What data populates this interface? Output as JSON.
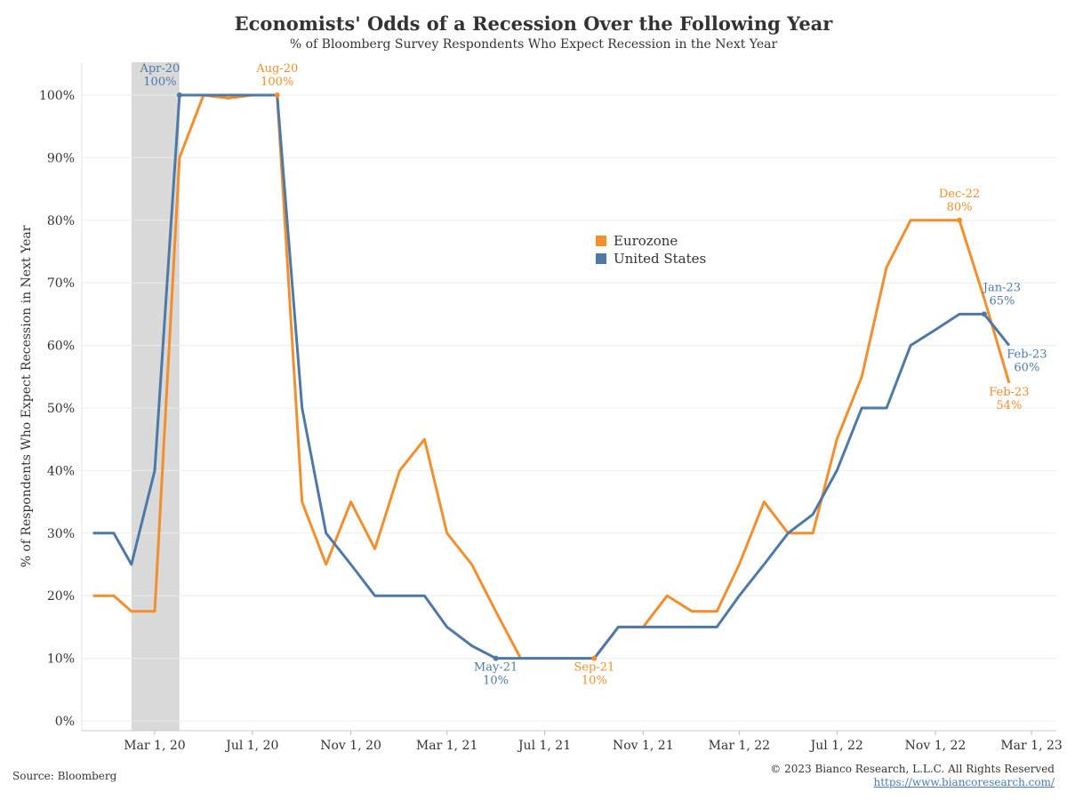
{
  "title": "Economists' Odds of a Recession Over the Following Year",
  "subtitle": "% of Bloomberg Survey Respondents Who Expect Recession in the Next Year",
  "source": "Source: Bloomberg",
  "copyright": "© 2023 Bianco Research, L.L.C. All Rights Reserved",
  "url": "https://www.biancoresearch.com/",
  "colors": {
    "eurozone": "#f28e2b",
    "us": "#4e79a7",
    "recession_shade": "#d9d9d9",
    "grid": "#ececec"
  },
  "chart_data": {
    "type": "line",
    "title": "Economists' Odds of a Recession Over the Following Year",
    "subtitle": "% of Bloomberg Survey Respondents Who Expect Recession in the Next Year",
    "xlabel": "",
    "ylabel": "% of Respondents Who Expect Recession in Next Year",
    "ylim": [
      0,
      100
    ],
    "xlim": [
      "2019-12-01",
      "2023-04-01"
    ],
    "x_ticks": [
      {
        "date": "2020-03-01",
        "label": "Mar 1, 20"
      },
      {
        "date": "2020-07-01",
        "label": "Jul 1, 20"
      },
      {
        "date": "2020-11-01",
        "label": "Nov 1, 20"
      },
      {
        "date": "2021-03-01",
        "label": "Mar 1, 21"
      },
      {
        "date": "2021-07-01",
        "label": "Jul 1, 21"
      },
      {
        "date": "2021-11-01",
        "label": "Nov 1, 21"
      },
      {
        "date": "2022-03-01",
        "label": "Mar 1, 22"
      },
      {
        "date": "2022-07-01",
        "label": "Jul 1, 22"
      },
      {
        "date": "2022-11-01",
        "label": "Nov 1, 22"
      },
      {
        "date": "2023-03-01",
        "label": "Mar 1, 23"
      }
    ],
    "y_ticks": [
      {
        "value": 0,
        "label": "0%"
      },
      {
        "value": 10,
        "label": "10%"
      },
      {
        "value": 20,
        "label": "20%"
      },
      {
        "value": 30,
        "label": "30%"
      },
      {
        "value": 40,
        "label": "40%"
      },
      {
        "value": 50,
        "label": "50%"
      },
      {
        "value": 60,
        "label": "60%"
      },
      {
        "value": 70,
        "label": "70%"
      },
      {
        "value": 80,
        "label": "80%"
      },
      {
        "value": 90,
        "label": "90%"
      },
      {
        "value": 100,
        "label": "100%"
      }
    ],
    "recession_period": [
      "2020-02-01",
      "2020-04-01"
    ],
    "grid": true,
    "legend_position": "center-right",
    "series": [
      {
        "name": "Eurozone",
        "color_key": "eurozone",
        "points": [
          [
            "2019-12-15",
            20
          ],
          [
            "2020-01-10",
            20
          ],
          [
            "2020-02-01",
            17.5
          ],
          [
            "2020-03-01",
            17.5
          ],
          [
            "2020-04-01",
            90
          ],
          [
            "2020-05-01",
            100
          ],
          [
            "2020-06-01",
            99.5
          ],
          [
            "2020-07-01",
            100
          ],
          [
            "2020-08-01",
            100
          ],
          [
            "2020-09-01",
            35
          ],
          [
            "2020-10-01",
            25
          ],
          [
            "2020-11-01",
            35
          ],
          [
            "2020-12-01",
            27.5
          ],
          [
            "2021-01-01",
            40
          ],
          [
            "2021-02-01",
            45
          ],
          [
            "2021-03-01",
            30
          ],
          [
            "2021-04-01",
            25
          ],
          [
            "2021-05-01",
            17.5
          ],
          [
            "2021-06-01",
            10
          ],
          [
            "2021-07-01",
            10
          ],
          [
            "2021-08-01",
            10
          ],
          [
            "2021-09-01",
            10
          ],
          [
            "2021-10-01",
            15
          ],
          [
            "2021-11-01",
            15
          ],
          [
            "2021-12-01",
            20
          ],
          [
            "2022-01-01",
            17.5
          ],
          [
            "2022-02-01",
            17.5
          ],
          [
            "2022-03-01",
            25
          ],
          [
            "2022-04-01",
            35
          ],
          [
            "2022-05-01",
            30
          ],
          [
            "2022-06-01",
            30
          ],
          [
            "2022-07-01",
            45
          ],
          [
            "2022-08-01",
            55
          ],
          [
            "2022-09-01",
            72.5
          ],
          [
            "2022-10-01",
            80
          ],
          [
            "2022-11-01",
            80
          ],
          [
            "2022-12-01",
            80
          ],
          [
            "2023-01-01",
            67.5
          ],
          [
            "2023-02-01",
            54
          ]
        ]
      },
      {
        "name": "United States",
        "color_key": "us",
        "points": [
          [
            "2019-12-15",
            30
          ],
          [
            "2020-01-10",
            30
          ],
          [
            "2020-02-01",
            25
          ],
          [
            "2020-03-01",
            40
          ],
          [
            "2020-04-01",
            100
          ],
          [
            "2020-05-01",
            100
          ],
          [
            "2020-06-01",
            100
          ],
          [
            "2020-07-01",
            100
          ],
          [
            "2020-08-01",
            100
          ],
          [
            "2020-09-01",
            50
          ],
          [
            "2020-10-01",
            30
          ],
          [
            "2020-11-01",
            25
          ],
          [
            "2020-12-01",
            20
          ],
          [
            "2021-01-01",
            20
          ],
          [
            "2021-02-01",
            20
          ],
          [
            "2021-03-01",
            15
          ],
          [
            "2021-04-01",
            12
          ],
          [
            "2021-05-01",
            10
          ],
          [
            "2021-06-01",
            10
          ],
          [
            "2021-07-01",
            10
          ],
          [
            "2021-08-01",
            10
          ],
          [
            "2021-09-01",
            10
          ],
          [
            "2021-10-01",
            15
          ],
          [
            "2021-11-01",
            15
          ],
          [
            "2021-12-01",
            15
          ],
          [
            "2022-01-01",
            15
          ],
          [
            "2022-02-01",
            15
          ],
          [
            "2022-03-01",
            20
          ],
          [
            "2022-04-01",
            25
          ],
          [
            "2022-05-01",
            30
          ],
          [
            "2022-06-01",
            33
          ],
          [
            "2022-07-01",
            40
          ],
          [
            "2022-08-01",
            50
          ],
          [
            "2022-09-01",
            50
          ],
          [
            "2022-10-01",
            60
          ],
          [
            "2022-11-01",
            62.5
          ],
          [
            "2022-12-01",
            65
          ],
          [
            "2023-01-01",
            65
          ],
          [
            "2023-02-01",
            60
          ]
        ]
      }
    ],
    "annotations": [
      {
        "series": "United States",
        "date": "2020-04-01",
        "value": 100,
        "lines": [
          "Apr-20",
          "100%"
        ],
        "pos": "above-left",
        "marker": true
      },
      {
        "series": "Eurozone",
        "date": "2020-08-01",
        "value": 100,
        "lines": [
          "Aug-20",
          "100%"
        ],
        "pos": "above",
        "marker": true
      },
      {
        "series": "United States",
        "date": "2021-05-01",
        "value": 10,
        "lines": [
          "May-21",
          "10%"
        ],
        "pos": "below",
        "marker": true
      },
      {
        "series": "Eurozone",
        "date": "2021-09-01",
        "value": 10,
        "lines": [
          "Sep-21",
          "10%"
        ],
        "pos": "below",
        "marker": true
      },
      {
        "series": "Eurozone",
        "date": "2022-12-01",
        "value": 80,
        "lines": [
          "Dec-22",
          "80%"
        ],
        "pos": "above",
        "marker": true
      },
      {
        "series": "United States",
        "date": "2023-01-01",
        "value": 65,
        "lines": [
          "Jan-23",
          "65%"
        ],
        "pos": "above-right",
        "marker": true
      },
      {
        "series": "United States",
        "date": "2023-02-01",
        "value": 60,
        "lines": [
          "Feb-23",
          "60%"
        ],
        "pos": "below-right",
        "marker": false
      },
      {
        "series": "Eurozone",
        "date": "2023-02-01",
        "value": 54,
        "lines": [
          "Feb-23",
          "54%"
        ],
        "pos": "below-left",
        "marker": false
      }
    ]
  }
}
